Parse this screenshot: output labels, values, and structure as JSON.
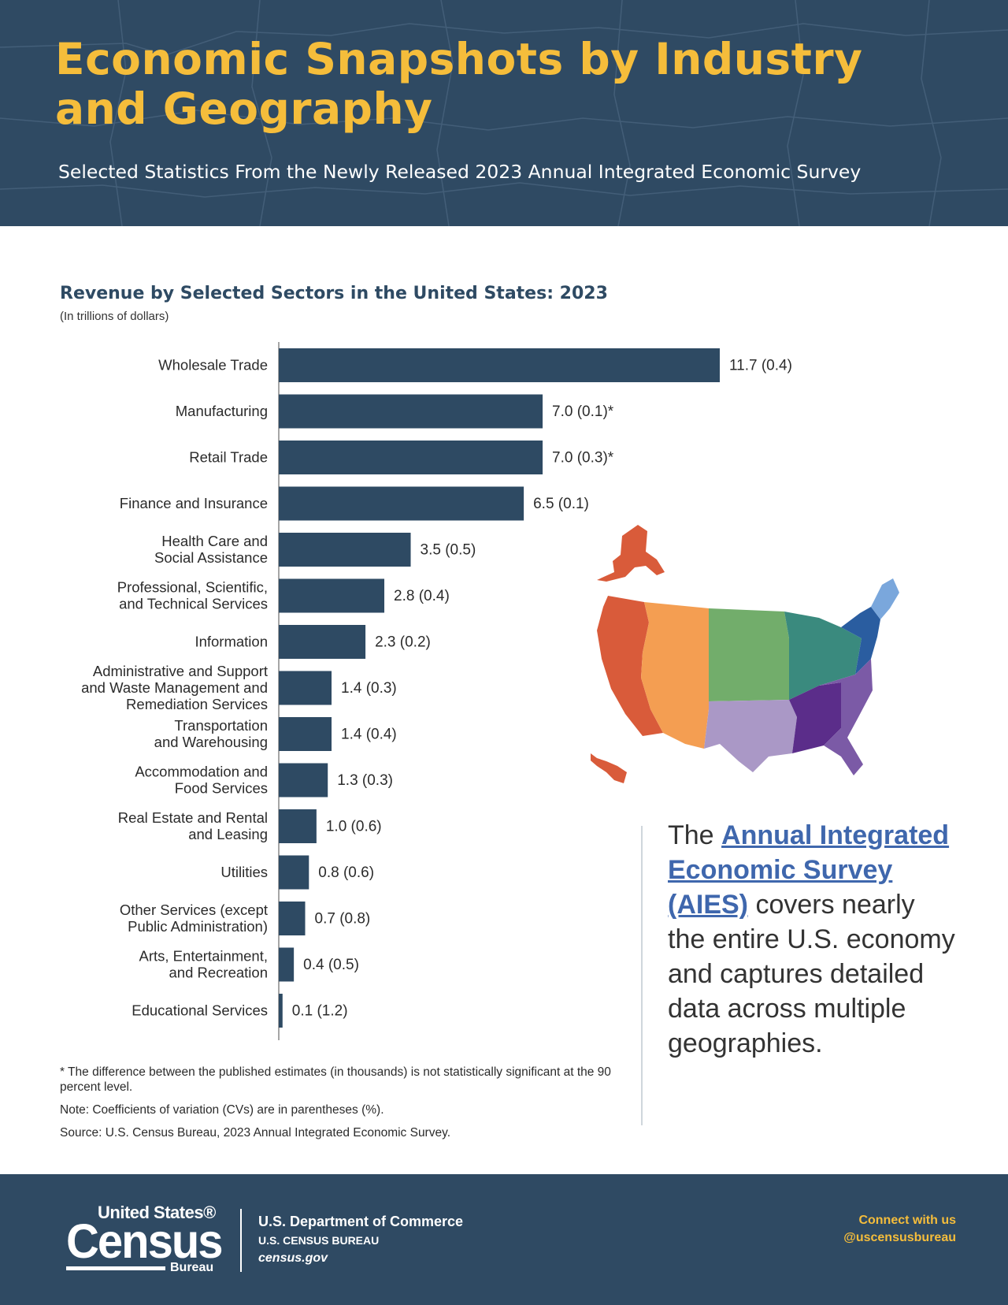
{
  "header": {
    "title": "Economic Snapshots by Industry and Geography",
    "subtitle": "Selected Statistics From the Newly Released 2023 Annual Integrated Economic Survey"
  },
  "chart_data": {
    "type": "bar",
    "orientation": "horizontal",
    "title": "Revenue by Selected Sectors in the United States: 2023",
    "subtitle": "(In trillions of dollars)",
    "categories": [
      "Wholesale Trade",
      "Manufacturing",
      "Retail Trade",
      "Finance and Insurance",
      "Health Care and\nSocial Assistance",
      "Professional, Scientific,\nand Technical Services",
      "Information",
      "Administrative and Support\nand Waste Management and\nRemediation Services",
      "Transportation\nand Warehousing",
      "Accommodation and\nFood Services",
      "Real Estate and Rental\nand Leasing",
      "Utilities",
      "Other Services (except\nPublic Administration)",
      "Arts, Entertainment,\nand Recreation",
      "Educational Services"
    ],
    "values": [
      11.7,
      7.0,
      7.0,
      6.5,
      3.5,
      2.8,
      2.3,
      1.4,
      1.4,
      1.3,
      1.0,
      0.8,
      0.7,
      0.4,
      0.1
    ],
    "data_labels": [
      "11.7 (0.4)",
      "7.0 (0.1)*",
      "7.0 (0.3)*",
      "6.5 (0.1)",
      "3.5 (0.5)",
      "2.8 (0.4)",
      "2.3 (0.2)",
      "1.4 (0.3)",
      "1.4 (0.4)",
      "1.3 (0.3)",
      "1.0 (0.6)",
      "0.8 (0.6)",
      "0.7 (0.8)",
      "0.4 (0.5)",
      "0.1 (1.2)"
    ],
    "xlim": [
      0,
      11.7
    ],
    "bar_color": "#2e4a63",
    "grid": false
  },
  "notes": {
    "footnote": "* The difference between the published estimates (in thousands) is not statistically significant at the 90 percent level.",
    "note": "Note: Coefficients of variation (CVs) are in parentheses (%).",
    "source": "Source: U.S. Census Bureau, 2023 Annual Integrated Economic Survey."
  },
  "callout": {
    "prefix": "The ",
    "link_text": "Annual Integrated Economic Survey (AIES)",
    "suffix": " covers nearly the entire U.S. economy and captures detailed data across multiple geographies."
  },
  "map_regions": {
    "west": "#d95b3a",
    "mountain": "#f49e52",
    "plains": "#72ad6b",
    "great_lakes": "#3a8a7e",
    "south_central": "#aa98c6",
    "southeast": "#7b5aa6",
    "deep_south": "#5b2d8a",
    "mid_atlantic": "#2a5da0",
    "new_england": "#7aa7dc"
  },
  "footer": {
    "logo_top": "United States®",
    "logo_main": "Census",
    "logo_sub": "Bureau",
    "dept": "U.S. Department of Commerce",
    "bureau": "U.S. CENSUS BUREAU",
    "site": "census.gov",
    "connect": "Connect with us",
    "handle": "@uscensusbureau"
  },
  "colors": {
    "header_bg": "#2f4a63",
    "title": "#f5bd3b",
    "link": "#3f67ad"
  }
}
